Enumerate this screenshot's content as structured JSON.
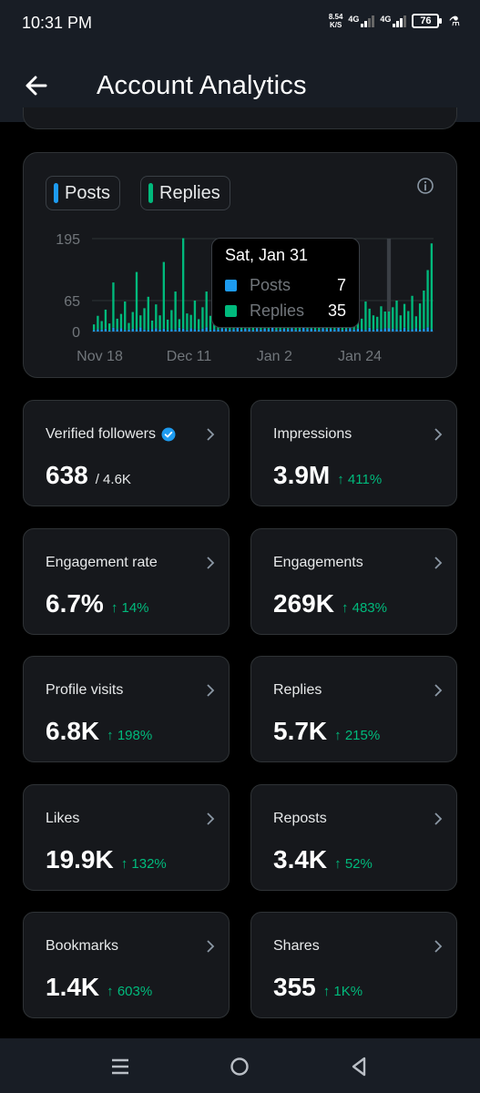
{
  "status_bar": {
    "time": "10:31 PM",
    "net_speed_value": "8.54",
    "net_speed_unit": "K/S",
    "signal_1_label": "4G",
    "signal_2_label": "4G",
    "signal_2_sub": "1↓",
    "battery": "76"
  },
  "header": {
    "title": "Account Analytics"
  },
  "chart": {
    "legend": [
      {
        "label": "Posts",
        "color": "#1d9bf0"
      },
      {
        "label": "Replies",
        "color": "#00ba7c"
      }
    ],
    "tooltip": {
      "date": "Sat, Jan 31",
      "rows": [
        {
          "label": "Posts",
          "value": "7",
          "color": "#1d9bf0"
        },
        {
          "label": "Replies",
          "value": "35",
          "color": "#00ba7c"
        }
      ]
    }
  },
  "chart_data": {
    "type": "bar",
    "ylim": [
      0,
      195
    ],
    "y_ticks": [
      "195",
      "65",
      "0"
    ],
    "y_tick_values": [
      195,
      65,
      0
    ],
    "x_ticks": [
      "Nov 18",
      "Dec 11",
      "Jan 2",
      "Jan 24"
    ],
    "x_tick_index": [
      2,
      25,
      47,
      69
    ],
    "highlight_index": 76,
    "series": [
      {
        "name": "Posts",
        "color": "#1d9bf0",
        "values": [
          3,
          5,
          4,
          6,
          2,
          8,
          5,
          7,
          3,
          4,
          6,
          5,
          9,
          4,
          3,
          5,
          7,
          4,
          6,
          3,
          5,
          4,
          8,
          6,
          3,
          7,
          5,
          4,
          6,
          9,
          3,
          5,
          4,
          7,
          6,
          3,
          5,
          8,
          4,
          6,
          5,
          3,
          7,
          4,
          6,
          5,
          8,
          3,
          4,
          6,
          5,
          7,
          3,
          4,
          9,
          5,
          6,
          4,
          3,
          7,
          5,
          6,
          4,
          8,
          3,
          5,
          7,
          4,
          6,
          5,
          3,
          8,
          4,
          6,
          5,
          7,
          7,
          6,
          5,
          4,
          8,
          3,
          5,
          7,
          4,
          6,
          9,
          5
        ]
      },
      {
        "name": "Replies",
        "color": "#00ba7c",
        "values": [
          12,
          28,
          18,
          40,
          15,
          95,
          22,
          30,
          60,
          14,
          35,
          120,
          25,
          45,
          70,
          18,
          50,
          30,
          140,
          22,
          40,
          80,
          18,
          190,
          35,
          28,
          60,
          22,
          45,
          75,
          30,
          110,
          40,
          25,
          165,
          20,
          55,
          130,
          35,
          15,
          48,
          72,
          28,
          40,
          18,
          30,
          55,
          22,
          38,
          20,
          65,
          28,
          42,
          18,
          30,
          50,
          22,
          35,
          60,
          25,
          40,
          18,
          32,
          55,
          20,
          45,
          28,
          50,
          35,
          22,
          60,
          40,
          30,
          25,
          48,
          35,
          35,
          45,
          60,
          30,
          50,
          40,
          70,
          25,
          55,
          80,
          120,
          180
        ]
      }
    ]
  },
  "metrics": [
    {
      "label": "Verified followers",
      "value": "638",
      "sub": "/ 4.6K",
      "verified": true
    },
    {
      "label": "Impressions",
      "value": "3.9M",
      "change": "↑ 411%"
    },
    {
      "label": "Engagement rate",
      "value": "6.7%",
      "change": "↑ 14%"
    },
    {
      "label": "Engagements",
      "value": "269K",
      "change": "↑ 483%"
    },
    {
      "label": "Profile visits",
      "value": "6.8K",
      "change": "↑ 198%"
    },
    {
      "label": "Replies",
      "value": "5.7K",
      "change": "↑ 215%"
    },
    {
      "label": "Likes",
      "value": "19.9K",
      "change": "↑ 132%"
    },
    {
      "label": "Reposts",
      "value": "3.4K",
      "change": "↑ 52%"
    },
    {
      "label": "Bookmarks",
      "value": "1.4K",
      "change": "↑ 603%"
    },
    {
      "label": "Shares",
      "value": "355",
      "change": "↑ 1K%"
    }
  ]
}
